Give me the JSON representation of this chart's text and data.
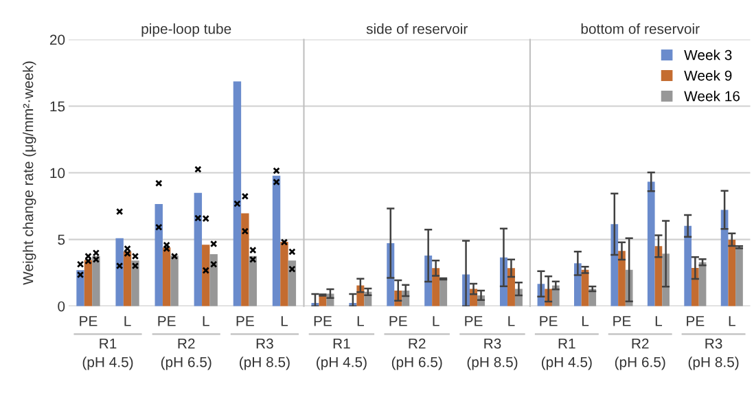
{
  "chart_data": [
    {
      "type": "bar",
      "title": "pipe-loop tube",
      "ylabel": "Weight change rate (μg/mm²·week)",
      "categories": [
        "PE",
        "L",
        "PE",
        "L",
        "PE",
        "L"
      ],
      "annotations": [
        "R1\n(pH 4.5)",
        "R2\n(pH 6.5)",
        "R3\n(pH 8.5)"
      ],
      "ylim": [
        0,
        20
      ],
      "yticks": [
        0,
        5,
        10,
        15,
        20
      ],
      "grid": "y",
      "series": [
        {
          "color": "#6a8bcc",
          "values": [
            2.7,
            5.1,
            7.66,
            8.5,
            16.86,
            9.79
          ]
        },
        {
          "color": "#c46c30",
          "values": [
            3.46,
            4.12,
            4.4,
            4.6,
            6.96,
            4.82
          ]
        },
        {
          "color": "#979797",
          "values": [
            3.76,
            3.42,
            3.79,
            3.9,
            3.76,
            3.42
          ]
        },
        {
          "type": "scatter",
          "marker": "cross",
          "color": "#000000",
          "values": [
            3.14,
            7.09,
            9.22,
            10.26,
            7.68,
            10.16
          ]
        },
        {
          "type": "scatter",
          "marker": "cross",
          "color": "#000000",
          "values": [
            2.35,
            3.02,
            5.92,
            6.6,
            null,
            9.31
          ]
        },
        {
          "type": "scatter",
          "marker": "cross",
          "color": "#000000",
          "values": [
            3.74,
            4.31,
            4.58,
            6.57,
            8.24,
            4.8
          ]
        },
        {
          "type": "scatter",
          "marker": "cross",
          "color": "#000000",
          "values": [
            3.38,
            3.95,
            4.31,
            2.68,
            5.62,
            null
          ]
        },
        {
          "type": "scatter",
          "marker": "cross",
          "color": "#000000",
          "values": [
            3.99,
            3.74,
            3.74,
            4.67,
            4.2,
            4.08
          ]
        },
        {
          "type": "scatter",
          "marker": "cross",
          "color": "#000000",
          "values": [
            3.5,
            3.02,
            null,
            3.14,
            3.5,
            2.78
          ]
        }
      ]
    },
    {
      "type": "bar",
      "title": "side of reservoir",
      "categories": [
        "PE",
        "L",
        "PE",
        "L",
        "PE",
        "L"
      ],
      "annotations": [
        "R1\n(pH 4.5)",
        "R2\n(pH 6.5)",
        "R3\n(pH 8.5)"
      ],
      "ylim": [
        0,
        20
      ],
      "yticks": [
        0,
        5,
        10,
        15,
        20
      ],
      "grid": "y",
      "tick_labels": "x",
      "series": [
        {
          "color": "#6a8bcc",
          "values": [
            0.24,
            0.24,
            4.72,
            3.79,
            2.38,
            3.65
          ],
          "errors": [
            [
              0,
              0.91
            ],
            [
              0,
              0.91
            ],
            2.6,
            1.95,
            [
              0,
              4.9
            ],
            2.16
          ]
        },
        {
          "color": "#c46c30",
          "values": [
            0.83,
            1.55,
            1.17,
            2.85,
            1.29,
            2.85
          ],
          "errors": [
            0.05,
            0.5,
            0.77,
            0.57,
            0.39,
            0.65
          ]
        },
        {
          "color": "#979797",
          "values": [
            0.94,
            1.07,
            1.17,
            2.04,
            0.81,
            1.29
          ],
          "errors": [
            0.33,
            0.25,
            0.42,
            0.05,
            0.35,
            0.48
          ]
        }
      ]
    },
    {
      "type": "bar",
      "title": "bottom of reservoir",
      "categories": [
        "PE",
        "L",
        "PE",
        "L",
        "PE",
        "L"
      ],
      "annotations": [
        "R1\n(pH 4.5)",
        "R2\n(pH 6.5)",
        "R3\n(pH 8.5)"
      ],
      "ylim": [
        0,
        20
      ],
      "yticks": [
        0,
        5,
        10,
        15,
        20
      ],
      "grid": "y",
      "tick_labels": "x",
      "legend": "top right",
      "series": [
        {
          "name": "Week 3",
          "color": "#6a8bcc",
          "values": [
            1.67,
            3.21,
            6.15,
            9.33,
            6.02,
            7.22
          ],
          "errors": [
            0.95,
            0.88,
            2.3,
            0.7,
            0.82,
            1.43
          ]
        },
        {
          "name": "Week 9",
          "color": "#c46c30",
          "values": [
            1.29,
            2.72,
            4.14,
            4.5,
            2.86,
            4.98
          ],
          "errors": [
            0.95,
            0.24,
            0.65,
            0.82,
            0.82,
            0.47
          ]
        },
        {
          "name": "Week 16",
          "color": "#979797",
          "values": [
            1.55,
            1.29,
            2.72,
            3.93,
            3.29,
            4.42
          ],
          "errors": [
            0.3,
            0.18,
            2.37,
            2.47,
            0.23,
            0.08
          ]
        }
      ]
    }
  ]
}
